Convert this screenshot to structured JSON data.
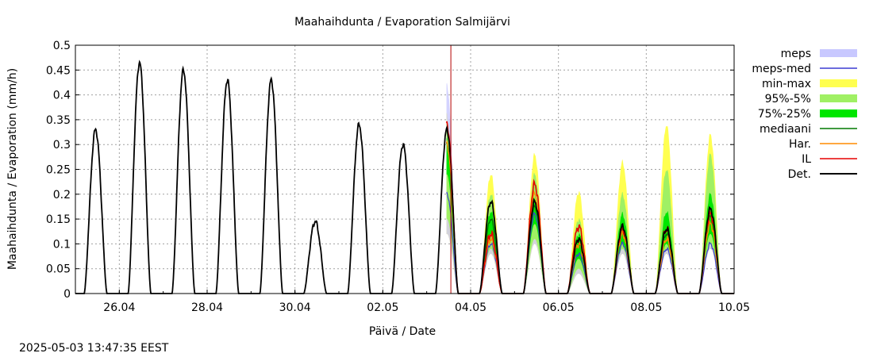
{
  "chart_data": {
    "type": "area",
    "title": "Maahaihdunta / Evaporation  Salmijärvi",
    "xlabel": "Päivä / Date",
    "ylabel": "Maahaihdunta / Evaporation (mm/h)",
    "timestamp": "2025-05-03 13:47:35 EEST",
    "x_range_days": [
      "2025-04-25",
      "2025-05-10"
    ],
    "ylim": [
      0,
      0.5
    ],
    "y_ticks": [
      0,
      0.05,
      0.1,
      0.15,
      0.2,
      0.25,
      0.3,
      0.35,
      0.4,
      0.45,
      0.5
    ],
    "y_tick_labels": [
      "0",
      "0.05",
      "0.1",
      "0.15",
      "0.2",
      "0.25",
      "0.3",
      "0.35",
      "0.4",
      "0.45",
      "0.5"
    ],
    "x_tick_labels": [
      "26.04",
      "28.04",
      "30.04",
      "02.05",
      "04.05",
      "06.05",
      "08.05",
      "10.05"
    ],
    "x_tick_days": [
      1,
      3,
      5,
      7,
      9,
      11,
      13,
      15
    ],
    "grid": true,
    "legend_position": "right",
    "forecast_start_day": 8.55,
    "colors": {
      "meps": "#c8c8ff",
      "meps_med": "#3c3cd2",
      "min_max": "#ffff50",
      "p95_5": "#a0f064",
      "p75_25": "#00e600",
      "median": "#007800",
      "har": "#ff8c00",
      "il": "#e60000",
      "det": "#000000",
      "now_line": "#b40000"
    },
    "legend": [
      {
        "key": "meps",
        "label": "meps",
        "style": "band"
      },
      {
        "key": "meps_med",
        "label": "meps-med",
        "style": "line"
      },
      {
        "key": "min_max",
        "label": "min-max",
        "style": "band"
      },
      {
        "key": "p95_5",
        "label": "95%-5%",
        "style": "band"
      },
      {
        "key": "p75_25",
        "label": "75%-25%",
        "style": "band"
      },
      {
        "key": "median",
        "label": "mediaani",
        "style": "line"
      },
      {
        "key": "har",
        "label": "Har.",
        "style": "line"
      },
      {
        "key": "il",
        "label": "IL",
        "style": "line"
      },
      {
        "key": "det",
        "label": "Det.",
        "style": "line"
      }
    ],
    "daily_peaks": {
      "days": [
        "25.04",
        "26.04",
        "27.04",
        "28.04",
        "29.04",
        "30.04",
        "01.05",
        "02.05",
        "03.05",
        "04.05",
        "05.05",
        "06.05",
        "07.05",
        "08.05",
        "09.05"
      ],
      "det": [
        0.33,
        0.465,
        0.45,
        0.43,
        0.43,
        0.145,
        0.34,
        0.3,
        0.33,
        0.185,
        0.185,
        0.11,
        0.135,
        0.13,
        0.17
      ],
      "median": [
        null,
        null,
        null,
        null,
        null,
        null,
        null,
        null,
        0.3,
        0.15,
        0.175,
        0.1,
        0.125,
        0.12,
        0.155
      ],
      "min": [
        null,
        null,
        null,
        null,
        null,
        null,
        null,
        null,
        0.12,
        0.08,
        0.1,
        0.04,
        0.08,
        0.08,
        0.09
      ],
      "max": [
        null,
        null,
        null,
        null,
        null,
        null,
        null,
        null,
        0.36,
        0.24,
        0.28,
        0.205,
        0.265,
        0.34,
        0.32
      ],
      "p95": [
        null,
        null,
        null,
        null,
        null,
        null,
        null,
        null,
        0.34,
        0.2,
        0.24,
        0.15,
        0.2,
        0.25,
        0.28
      ],
      "p5": [
        null,
        null,
        null,
        null,
        null,
        null,
        null,
        null,
        0.15,
        0.09,
        0.11,
        0.05,
        0.09,
        0.09,
        0.1
      ],
      "p75": [
        null,
        null,
        null,
        null,
        null,
        null,
        null,
        null,
        0.31,
        0.165,
        0.19,
        0.12,
        0.16,
        0.165,
        0.2
      ],
      "p25": [
        null,
        null,
        null,
        null,
        null,
        null,
        null,
        null,
        0.24,
        0.12,
        0.14,
        0.07,
        0.1,
        0.1,
        0.12
      ],
      "meps_max": [
        null,
        null,
        null,
        null,
        null,
        null,
        null,
        null,
        0.42,
        0.12,
        0.24,
        0.1,
        0.12,
        0.1,
        0.12
      ],
      "meps_med": [
        null,
        null,
        null,
        null,
        null,
        null,
        null,
        null,
        0.2,
        0.1,
        0.16,
        0.08,
        0.1,
        0.09,
        0.1
      ],
      "il": [
        null,
        null,
        null,
        null,
        null,
        null,
        null,
        null,
        0.34,
        0.12,
        0.22,
        0.135,
        0.13,
        0.13,
        0.16
      ],
      "har": [
        null,
        null,
        null,
        null,
        null,
        null,
        null,
        null,
        0.3,
        0.11,
        0.2,
        0.1,
        0.12,
        0.11,
        0.14
      ]
    }
  }
}
